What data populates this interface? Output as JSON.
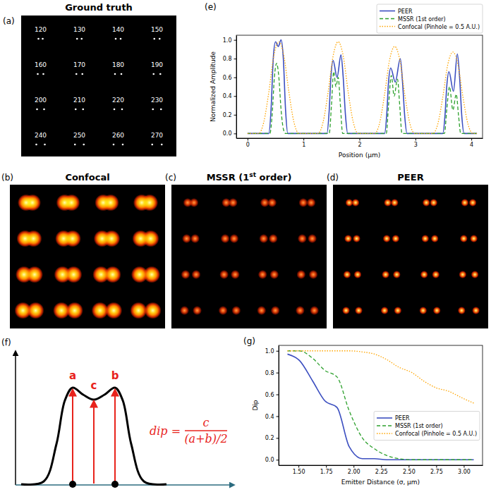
{
  "chart_data": [
    {
      "type": "image",
      "panel_label": "(a)",
      "title": "Ground truth",
      "emitter_distances": [
        120,
        130,
        140,
        150,
        160,
        170,
        180,
        190,
        200,
        210,
        220,
        230,
        240,
        250,
        260,
        270
      ]
    },
    {
      "type": "image",
      "panel_label": "(b)",
      "title": "Confocal"
    },
    {
      "type": "image",
      "panel_label": "(c)",
      "title": "MSSR (1st order)"
    },
    {
      "type": "image",
      "panel_label": "(d)",
      "title": "PEER"
    },
    {
      "type": "line",
      "panel_label": "(e)",
      "x_label": "Position (μm)",
      "y_label": "Normalized Amplitude",
      "xlim": [
        -0.2,
        4.2
      ],
      "ylim": [
        -0.05,
        1.05
      ],
      "xticks": [
        0,
        1,
        2,
        3,
        4
      ],
      "yticks": [
        {
          "value": 0,
          "label": "0.0"
        },
        0.2,
        0.4,
        0.6,
        0.8,
        {
          "value": 1,
          "label": "1.0"
        }
      ],
      "legend": "top",
      "series": [
        {
          "name": "PEER",
          "color": "#3c4fc0",
          "line_style": "solid",
          "x": [
            0,
            0.38,
            0.42,
            0.46,
            0.5,
            0.55,
            0.6,
            0.64,
            0.68,
            0.72,
            1.42,
            1.46,
            1.49,
            1.53,
            1.6,
            1.67,
            1.71,
            1.75,
            1.79,
            2.45,
            2.49,
            2.52,
            2.56,
            2.64,
            2.73,
            2.77,
            2.81,
            2.85,
            3.49,
            3.53,
            3.56,
            3.6,
            3.68,
            3.75,
            3.79,
            3.83,
            3.87,
            4.1
          ],
          "values": [
            0,
            0,
            0.25,
            0.8,
            0.98,
            0.93,
            1.0,
            0.8,
            0.25,
            0,
            0,
            0.25,
            0.6,
            0.78,
            0.6,
            0.84,
            0.6,
            0.2,
            0,
            0,
            0.22,
            0.55,
            0.7,
            0.55,
            0.8,
            0.55,
            0.18,
            0,
            0,
            0.2,
            0.5,
            0.66,
            0.45,
            0.85,
            0.6,
            0.18,
            0,
            0
          ]
        },
        {
          "name": "MSSR (1st order)",
          "color": "#2ca02c",
          "line_style": "dashed",
          "x": [
            0,
            0.4,
            0.44,
            0.48,
            0.52,
            0.56,
            0.6,
            0.64,
            0.68,
            1.46,
            1.5,
            1.54,
            1.58,
            1.62,
            1.66,
            1.7,
            2.48,
            2.52,
            2.57,
            2.62,
            2.68,
            2.72,
            2.76,
            3.52,
            3.56,
            3.61,
            3.67,
            3.73,
            3.77,
            3.81,
            4.1
          ],
          "values": [
            0,
            0,
            0.2,
            0.6,
            0.75,
            0.6,
            0.25,
            0.05,
            0,
            0,
            0.3,
            0.66,
            0.5,
            0.6,
            0.3,
            0,
            0,
            0.3,
            0.62,
            0.4,
            0.58,
            0.3,
            0,
            0,
            0.25,
            0.5,
            0.25,
            0.42,
            0.2,
            0,
            0
          ]
        },
        {
          "name": "Confocal (Pinhole = 0.5 A.U.)",
          "color": "#ffa500",
          "line_style": "dotted",
          "x": [
            0,
            0.2,
            0.29,
            0.38,
            0.47,
            0.56,
            0.65,
            0.74,
            0.83,
            0.92,
            1.26,
            1.35,
            1.44,
            1.53,
            1.62,
            1.71,
            1.8,
            1.89,
            1.98,
            2.27,
            2.36,
            2.45,
            2.54,
            2.63,
            2.72,
            2.81,
            2.9,
            2.99,
            3.31,
            3.4,
            3.49,
            3.58,
            3.67,
            3.76,
            3.85,
            3.94,
            4.03,
            4.1
          ],
          "values": [
            0,
            0,
            0.12,
            0.44,
            0.83,
            0.98,
            0.83,
            0.44,
            0.12,
            0,
            0,
            0.12,
            0.44,
            0.83,
            0.98,
            0.83,
            0.44,
            0.12,
            0,
            0,
            0.11,
            0.42,
            0.79,
            0.93,
            0.79,
            0.42,
            0.11,
            0,
            0,
            0.1,
            0.39,
            0.74,
            0.87,
            0.74,
            0.39,
            0.1,
            0,
            0
          ]
        }
      ]
    },
    {
      "type": "diagram",
      "panel_label": "(f)",
      "labels": [
        "a",
        "c",
        "b"
      ],
      "formula": {
        "lhs": "dip =",
        "numerator": "c",
        "denominator": "(a+b)/2"
      }
    },
    {
      "type": "line",
      "panel_label": "(g)",
      "x_label": "Emitter Distance (σ, μm)",
      "y_label": "Dip",
      "xlim": [
        1.32,
        3.17
      ],
      "ylim": [
        -0.05,
        1.05
      ],
      "xticks": [
        {
          "value": 1.5,
          "label": "1.50"
        },
        {
          "value": 1.75,
          "label": "1.75"
        },
        {
          "value": 2,
          "label": "2.00"
        },
        {
          "value": 2.25,
          "label": "2.25"
        },
        {
          "value": 2.5,
          "label": "2.50"
        },
        {
          "value": 2.75,
          "label": "2.75"
        },
        {
          "value": 3,
          "label": "3.00"
        }
      ],
      "yticks": [
        {
          "value": 0,
          "label": "0.0"
        },
        0.2,
        0.4,
        0.6,
        0.8,
        {
          "value": 1,
          "label": "1.0"
        }
      ],
      "legend": "center right",
      "x": [
        1.4,
        1.51,
        1.63,
        1.74,
        1.85,
        1.96,
        2.08,
        2.19,
        2.3,
        2.41,
        2.53,
        2.64,
        2.75,
        2.86,
        2.98,
        3.09
      ],
      "series": [
        {
          "name": "PEER",
          "color": "#3c4fc0",
          "line_style": "solid",
          "values": [
            0.97,
            0.91,
            0.72,
            0.54,
            0.48,
            0.12,
            0.01,
            0.01,
            0,
            0,
            0,
            0,
            0,
            0,
            0,
            0
          ]
        },
        {
          "name": "MSSR (1st order)",
          "color": "#2ca02c",
          "line_style": "dashed",
          "values": [
            1,
            1,
            0.93,
            0.82,
            0.76,
            0.45,
            0.2,
            0.1,
            0.04,
            0.01,
            0,
            0,
            0,
            0,
            0,
            0
          ]
        },
        {
          "name": "Confocal (Pinhole = 0.5 A.U.)",
          "color": "#ffa500",
          "line_style": "dotted",
          "values": [
            1,
            1,
            1,
            1,
            1,
            1,
            0.99,
            0.97,
            0.92,
            0.85,
            0.8,
            0.72,
            0.66,
            0.63,
            0.57,
            0.52
          ]
        }
      ]
    }
  ]
}
